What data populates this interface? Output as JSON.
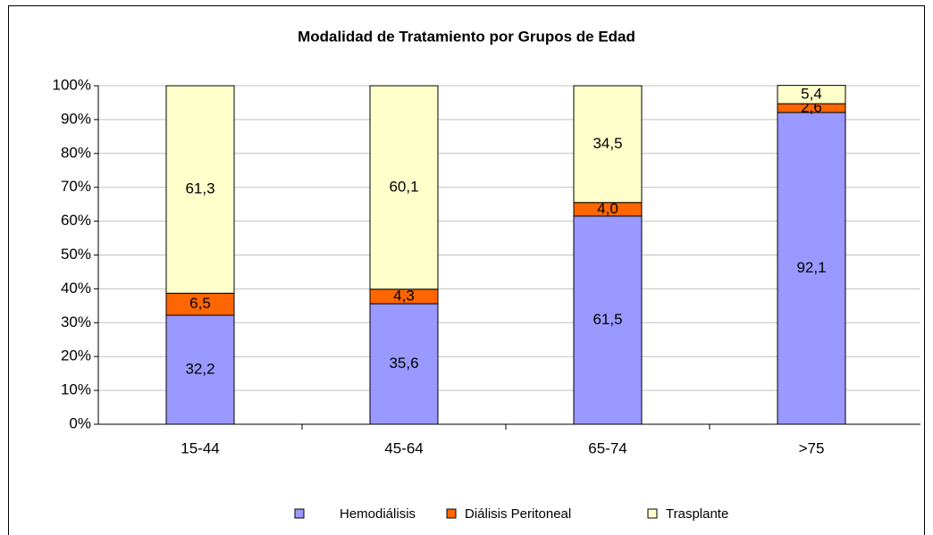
{
  "chart_data": {
    "type": "stacked_bar",
    "title": "Modalidad de Tratamiento por Grupos de Edad",
    "categories": [
      "15-44",
      "45-64",
      "65-74",
      ">75"
    ],
    "series": [
      {
        "name": "Hemodiálisis",
        "color": "#9999ff",
        "values": [
          32.2,
          35.6,
          61.5,
          92.1
        ],
        "value_labels": [
          "32,2",
          "35,6",
          "61,5",
          "92,1"
        ]
      },
      {
        "name": "Diálisis Peritoneal",
        "color": "#ff6600",
        "values": [
          6.5,
          4.3,
          4.0,
          2.6
        ],
        "value_labels": [
          "6,5",
          "4,3",
          "4,0",
          "2,6"
        ]
      },
      {
        "name": "Trasplante",
        "color": "#ffffcc",
        "values": [
          61.3,
          60.1,
          34.5,
          5.4
        ],
        "value_labels": [
          "61,3",
          "60,1",
          "34,5",
          "5,4"
        ]
      }
    ],
    "ylim": [
      0,
      100
    ],
    "yticks": [
      {
        "value": 0,
        "label": "0%"
      },
      {
        "value": 10,
        "label": "10%"
      },
      {
        "value": 20,
        "label": "20%"
      },
      {
        "value": 30,
        "label": "30%"
      },
      {
        "value": 40,
        "label": "40%"
      },
      {
        "value": 50,
        "label": "50%"
      },
      {
        "value": 60,
        "label": "60%"
      },
      {
        "value": 70,
        "label": "70%"
      },
      {
        "value": 80,
        "label": "80%"
      },
      {
        "value": 90,
        "label": "90%"
      },
      {
        "value": 100,
        "label": "100%"
      }
    ],
    "grid": true,
    "legend": "bottom"
  }
}
